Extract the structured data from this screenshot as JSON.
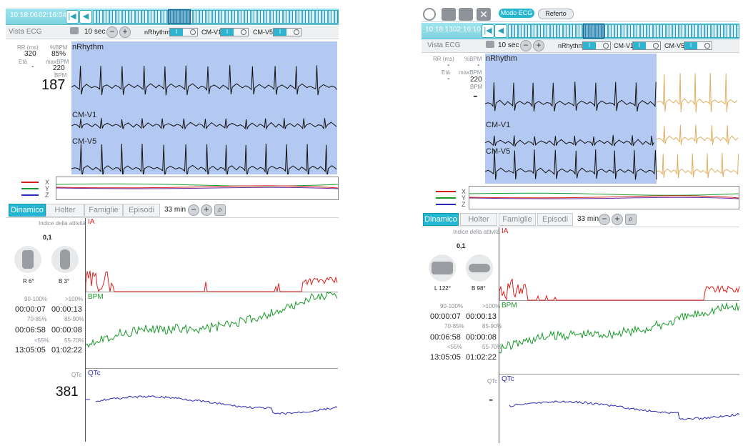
{
  "left": {
    "time1": "10:18:06",
    "time2": "02:16:04",
    "vista": "Vista ECG",
    "window": "10 sec",
    "toggles": [
      "nRhythm",
      "CM-V1",
      "CM-V5"
    ],
    "stats": {
      "rr_label": "RR (ms)",
      "rr_value": "320",
      "eta_label": "Età",
      "eta_value": "-",
      "pbpm_label": "%BPM",
      "pbpm_value": "85%",
      "maxbpm_label": "maxBPM",
      "maxbpm_value": "220",
      "bpm_label": "BPM",
      "bpm_value": "187"
    },
    "leads": [
      "nRhythm",
      "CM-V1",
      "CM-V5"
    ],
    "xyz": [
      "X",
      "Y",
      "Z"
    ],
    "tabs": [
      "Dinamico",
      "Holter",
      "Famiglie",
      "Episodi"
    ],
    "zoom": "33 min",
    "activity_label": "Indice della attività",
    "activity_value": "0,1",
    "pos1": "R 6°",
    "pos2": "B 3°",
    "chart_ia": "IA",
    "chart_bpm": "BPM",
    "chart_qtc": "QTc",
    "zones": [
      {
        "l1": "90-100%",
        "v1": "00:00:07",
        "l2": ">100%",
        "v2": "00:00:13"
      },
      {
        "l1": "70-85%",
        "v1": "00:06:58",
        "l2": "85-90%",
        "v2": "00:00:08"
      },
      {
        "l1": "<55%",
        "v1": "13:05:05",
        "l2": "55-70%",
        "v2": "01:02:22"
      }
    ],
    "qtc_label": "QTc",
    "qtc_value": "381"
  },
  "right": {
    "modo": "Modo ECG",
    "referto": "Referto",
    "time1": "10:18:13",
    "time2": "02:16:10",
    "vista": "Vista ECG",
    "window": "10 sec",
    "toggles": [
      "nRhythm",
      "CM-V1",
      "CM-V5"
    ],
    "stats": {
      "rr_label": "RR (ms)",
      "rr_value": "-",
      "eta_label": "Età",
      "eta_value": "-",
      "pbpm_label": "%BPM",
      "pbpm_value": "-",
      "maxbpm_label": "maxBPM",
      "maxbpm_value": "220",
      "bpm_label": "BPM",
      "bpm_value": "-"
    },
    "leads": [
      "nRhythm",
      "CM-V1",
      "CM-V5"
    ],
    "xyz": [
      "X",
      "Y",
      "Z"
    ],
    "tabs": [
      "Dinamico",
      "Holter",
      "Famiglie",
      "Episodi"
    ],
    "zoom": "33 min",
    "activity_label": "Indice della attività",
    "activity_value": "0,1",
    "pos1": "L 122°",
    "pos2": "B 98°",
    "chart_ia": "IA",
    "chart_bpm": "BPM",
    "chart_qtc": "QTc",
    "zones": [
      {
        "l1": "90-100%",
        "v1": "00:00:07",
        "l2": ">100%",
        "v2": "00:00:13"
      },
      {
        "l1": "70-85%",
        "v1": "00:06:58",
        "l2": "85-90%",
        "v2": "00:00:08"
      },
      {
        "l1": "<55%",
        "v1": "13:05:05",
        "l2": "55-70%",
        "v2": "01:02:22"
      }
    ],
    "qtc_label": "QTc",
    "qtc_value": "-"
  },
  "colors": {
    "accent": "#25b6d1",
    "ecg_bg": "#b4c9f1",
    "ia": "#e0201c",
    "bpm": "#1a9a2a",
    "qtc": "#2a2ab8",
    "ecg_replay": "#e0b060"
  },
  "icons": [
    "clock-icon",
    "export-icon",
    "save-icon",
    "close-icon",
    "camera-icon",
    "skip-start-icon",
    "play-back-icon",
    "search-icon"
  ]
}
